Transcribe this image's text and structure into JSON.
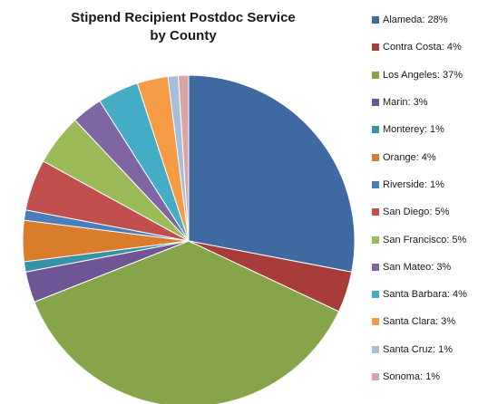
{
  "chart_data": {
    "type": "pie",
    "title_lines": [
      "Stipend Recipient Postdoc Service",
      "by County"
    ],
    "legend_position": "right",
    "slices": [
      {
        "name": "Alameda",
        "value": 28,
        "label": "Alameda: 28%",
        "color": "#3f6aa1"
      },
      {
        "name": "Contra Costa",
        "value": 4,
        "label": "Contra Costa: 4%",
        "color": "#a73c3a"
      },
      {
        "name": "Los Angeles",
        "value": 37,
        "label": "Los Angeles: 37%",
        "color": "#86a44a"
      },
      {
        "name": "Marin",
        "value": 3,
        "label": "Marin: 3%",
        "color": "#6f5595"
      },
      {
        "name": "Monterey",
        "value": 1,
        "label": "Monterey: 1%",
        "color": "#3592a7"
      },
      {
        "name": "Orange",
        "value": 4,
        "label": "Orange: 4%",
        "color": "#d97d2d"
      },
      {
        "name": "Riverside",
        "value": 1,
        "label": "Riverside: 1%",
        "color": "#4a7ebb"
      },
      {
        "name": "San Diego",
        "value": 5,
        "label": "San Diego: 5%",
        "color": "#c04f4d"
      },
      {
        "name": "San Francisco",
        "value": 5,
        "label": "San Francisco: 5%",
        "color": "#9bbb59"
      },
      {
        "name": "San Mateo",
        "value": 3,
        "label": "San Mateo: 3%",
        "color": "#7f65a3"
      },
      {
        "name": "Santa Barbara",
        "value": 4,
        "label": "Santa Barbara: 4%",
        "color": "#45acc6"
      },
      {
        "name": "Santa Clara",
        "value": 3,
        "label": "Santa Clara: 3%",
        "color": "#f59a45"
      },
      {
        "name": "Santa Cruz",
        "value": 1,
        "label": "Santa Cruz: 1%",
        "color": "#a8bcdc"
      },
      {
        "name": "Sonoma",
        "value": 1,
        "label": "Sonoma: 1%",
        "color": "#d9a5a4"
      }
    ]
  }
}
